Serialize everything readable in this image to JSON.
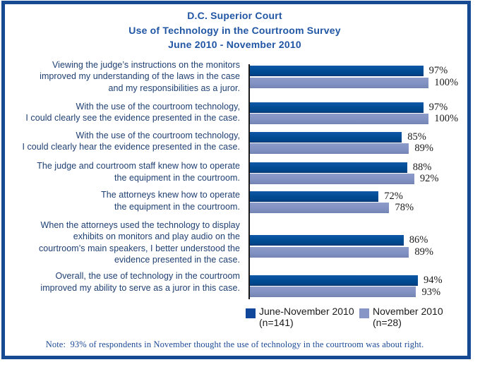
{
  "title": {
    "line1": "D.C. Superior Court",
    "line2": "Use of Technology in the Courtroom Survey",
    "line3": "June 2010 - November 2010"
  },
  "chart_data": {
    "type": "bar",
    "orientation": "horizontal",
    "value_unit": "percent",
    "xlim": [
      0,
      100
    ],
    "grid": false,
    "legend_position": "bottom",
    "categories": [
      [
        "Viewing the judge’s instructions on the monitors",
        "improved my understanding of the laws in the case",
        "and my responsibilities as a juror."
      ],
      [
        "With the use of the courtroom technology,",
        "I could clearly see the evidence presented in the case."
      ],
      [
        "With the use of the courtroom technology,",
        "I could clearly hear the evidence presented in the case."
      ],
      [
        "The judge and courtroom staff knew how to operate",
        "the equipment in the courtroom."
      ],
      [
        "The attorneys knew how to operate",
        "the equipment in the courtroom."
      ],
      [
        "When the attorneys used the technology to display",
        "exhibits on monitors and play audio on the",
        "courtroom’s main speakers, I better understood the",
        "evidence presented in the case."
      ],
      [
        "Overall, the use of technology in the courtroom",
        "improved my ability to serve as a juror in this case."
      ]
    ],
    "series": [
      {
        "name": "June-November 2010",
        "n_label": "(n=141)",
        "color": "#004a91",
        "values": [
          97,
          97,
          85,
          88,
          72,
          86,
          94
        ]
      },
      {
        "name": "November 2010",
        "n_label": "(n=28)",
        "color": "#8090c0",
        "values": [
          100,
          100,
          89,
          92,
          78,
          89,
          93
        ]
      }
    ],
    "value_labels": [
      [
        "97%",
        "100%"
      ],
      [
        "97%",
        "100%"
      ],
      [
        "85%",
        "89%"
      ],
      [
        "88%",
        "92%"
      ],
      [
        "72%",
        "78%"
      ],
      [
        "86%",
        "89%"
      ],
      [
        "94%",
        "93%"
      ]
    ]
  },
  "legend": {
    "entries": [
      {
        "label": "June-November 2010",
        "sub_label": "(n=141)",
        "color": "#11479b"
      },
      {
        "label": "November 2010",
        "sub_label": "(n=28)",
        "color": "#8695c5"
      }
    ]
  },
  "note": {
    "text": "Note:  93% of respondents in November thought the use of technology in the courtroom was about right."
  },
  "colors": {
    "frame_border": "#164b94",
    "title_text": "#2156a4",
    "category_text": "#1e3f72",
    "dark_bar": "#004a91",
    "light_bar": "#8090c0",
    "axis": "#1a1a1a",
    "note_text": "#1c4a96",
    "value_text": "#1a1a1a"
  }
}
